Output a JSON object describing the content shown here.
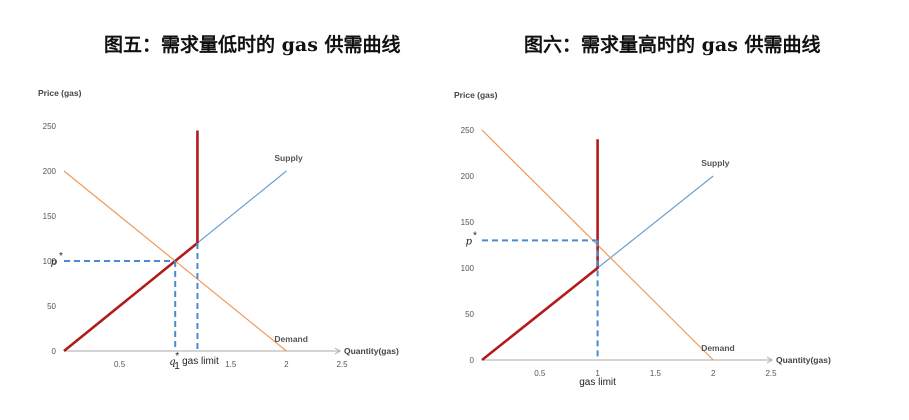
{
  "chart_data": [
    {
      "type": "line",
      "title": "图五：需求量低时的 gas 供需曲线",
      "xlabel": "Quantity(gas)",
      "ylabel": "Price (gas)",
      "xlim": [
        0,
        2.5
      ],
      "ylim": [
        0,
        250
      ],
      "x_ticks": [
        "0.5",
        "1.5",
        "2",
        "2.5"
      ],
      "y_ticks": [
        "0",
        "50",
        "100",
        "150",
        "200",
        "250"
      ],
      "grid": false,
      "series": [
        {
          "name": "Supply",
          "color": "#6a9fd0",
          "x": [
            0,
            2
          ],
          "y": [
            0,
            200
          ]
        },
        {
          "name": "Demand",
          "color": "#ef9a5a",
          "x": [
            0,
            2
          ],
          "y": [
            200,
            0
          ]
        },
        {
          "color": "#b31b1b",
          "x": [
            0,
            1.2,
            1.2
          ],
          "y": [
            0,
            120,
            245
          ]
        }
      ],
      "equilibrium": {
        "x": 1,
        "y": 100
      },
      "gas_limit_x": 1.2,
      "annotations": {
        "p_star": "p",
        "q_star": "q",
        "q_sub": "1",
        "gas_limit": "gas limit",
        "star": "*"
      }
    },
    {
      "type": "line",
      "title": "图六：需求量高时的 gas 供需曲线",
      "xlabel": "Quantity(gas)",
      "ylabel": "Price (gas)",
      "xlim": [
        0,
        2.5
      ],
      "ylim": [
        0,
        250
      ],
      "x_ticks": [
        "0.5",
        "1",
        "1.5",
        "2",
        "2.5"
      ],
      "y_ticks": [
        "0",
        "50",
        "100",
        "150",
        "200",
        "250"
      ],
      "grid": false,
      "series": [
        {
          "name": "Supply",
          "color": "#6a9fd0",
          "x": [
            0,
            2
          ],
          "y": [
            0,
            200
          ]
        },
        {
          "name": "Demand",
          "color": "#ef9a5a",
          "x": [
            0,
            2
          ],
          "y": [
            250,
            0
          ]
        },
        {
          "color": "#b31b1b",
          "x": [
            0,
            1,
            1
          ],
          "y": [
            0,
            100,
            240
          ]
        }
      ],
      "equilibrium": {
        "x": 1,
        "y": 130
      },
      "gas_limit_x": 1,
      "annotations": {
        "p_star": "p",
        "gas_limit": "gas limit",
        "star": "*"
      }
    }
  ]
}
